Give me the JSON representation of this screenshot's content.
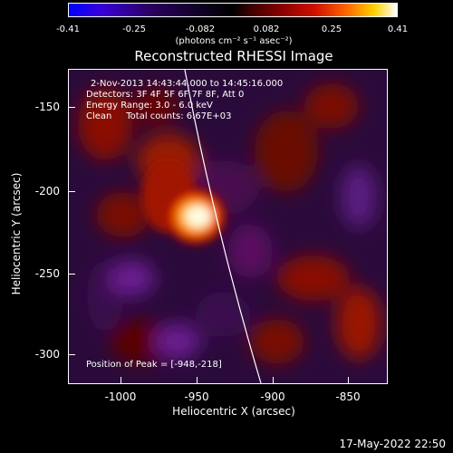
{
  "colorbar": {
    "tick_labels": [
      "-0.41",
      "-0.25",
      "-0.082",
      "0.082",
      "0.25",
      "0.41"
    ],
    "units": "(photons cm⁻² s⁻¹ asec⁻²)"
  },
  "plot": {
    "title": "Reconstructed RHESSI Image",
    "info": {
      "time_range": "2-Nov-2013 14:43:44.000 to 14:45:16.000",
      "detectors": "Detectors: 3F 4F 5F 6F 7F 8F, Att 0",
      "energy_range": "Energy Range: 3.0 - 6.0 keV",
      "clean": "Clean     Total counts: 6.67E+03"
    },
    "peak": "Position of Peak = [-948,-218]",
    "y_axis": {
      "label": "Heliocentric Y (arcsec)",
      "ticks": [
        "-150",
        "-200",
        "-250",
        "-300"
      ]
    },
    "x_axis": {
      "label": "Heliocentric X (arcsec)",
      "ticks": [
        "-1000",
        "-950",
        "-900",
        "-850"
      ]
    }
  },
  "footer": {
    "timestamp": "17-May-2022 22:50"
  },
  "colors": {
    "background": "#000000",
    "foreground": "#ffffff",
    "limb": "#ffffff"
  }
}
